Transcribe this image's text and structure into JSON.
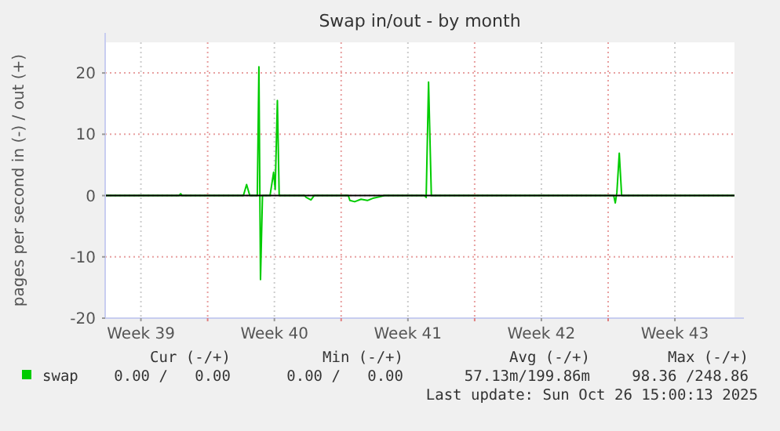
{
  "chart_data": {
    "type": "line",
    "title": "Swap in/out - by month",
    "ylabel": "pages per second in (-) / out (+)",
    "xlim": [
      "2025-09-23T15:00",
      "2025-10-26T15:00"
    ],
    "xticks": [
      {
        "value": "2025-09-25T12:00",
        "label": "Week 39"
      },
      {
        "value": "2025-09-29T00:00",
        "label": null
      },
      {
        "value": "2025-10-02T12:00",
        "label": "Week 40"
      },
      {
        "value": "2025-10-06T00:00",
        "label": null
      },
      {
        "value": "2025-10-09T12:00",
        "label": "Week 41"
      },
      {
        "value": "2025-10-13T00:00",
        "label": null
      },
      {
        "value": "2025-10-16T12:00",
        "label": "Week 42"
      },
      {
        "value": "2025-10-20T00:00",
        "label": null
      },
      {
        "value": "2025-10-23T12:00",
        "label": "Week 43"
      }
    ],
    "ylim": [
      -20,
      25
    ],
    "yticks": [
      -20,
      -10,
      0,
      10,
      20
    ],
    "grid": true,
    "legend": "bottom",
    "ref_lines": [
      {
        "axis": "y",
        "value": 0,
        "color": "#000000"
      }
    ],
    "series": [
      {
        "name": "swap",
        "color": "#00cc00",
        "x": [
          "2025-09-23T15:00",
          "2025-09-27T12:00",
          "2025-09-27T14:00",
          "2025-09-27T16:00",
          "2025-09-30T21:00",
          "2025-10-01T01:00",
          "2025-10-01T05:00",
          "2025-10-01T14:30",
          "2025-10-01T16:30",
          "2025-10-01T18:30",
          "2025-10-01T21:00",
          "2025-10-02T06:30",
          "2025-10-02T11:00",
          "2025-10-02T13:00",
          "2025-10-02T15:45",
          "2025-10-02T18:00",
          "2025-10-04T02:00",
          "2025-10-04T04:00",
          "2025-10-04T10:00",
          "2025-10-04T14:00",
          "2025-10-06T09:00",
          "2025-10-06T11:00",
          "2025-10-06T17:00",
          "2025-10-07T01:00",
          "2025-10-07T09:00",
          "2025-10-07T17:00",
          "2025-10-08T00:30",
          "2025-10-08T06:30",
          "2025-10-10T09:00",
          "2025-10-10T11:00",
          "2025-10-10T14:00",
          "2025-10-10T17:30",
          "2025-10-20T07:00",
          "2025-10-20T09:00",
          "2025-10-20T11:00",
          "2025-10-20T14:00",
          "2025-10-20T17:00",
          "2025-10-26T15:00"
        ],
        "values": [
          0,
          0,
          0.3,
          0,
          0,
          1.8,
          0,
          0,
          21,
          -13.7,
          0,
          0,
          3.8,
          1,
          15.5,
          0,
          0,
          -0.3,
          -0.7,
          0,
          0,
          -0.8,
          -1,
          -0.6,
          -0.8,
          -0.4,
          -0.2,
          0,
          0,
          -0.3,
          18.5,
          0,
          0,
          -1.2,
          0.5,
          6.9,
          0,
          0
        ]
      }
    ],
    "annotations": [
      "Cur (-/+)",
      "Min (-/+)",
      "Avg (-/+)",
      "Max (-/+)",
      "0.00 /   0.00",
      "0.00 /   0.00",
      "57.13m/199.86m",
      "98.36 /248.86",
      "Last update: Sun Oct 26 15:00:13 2025"
    ]
  }
}
